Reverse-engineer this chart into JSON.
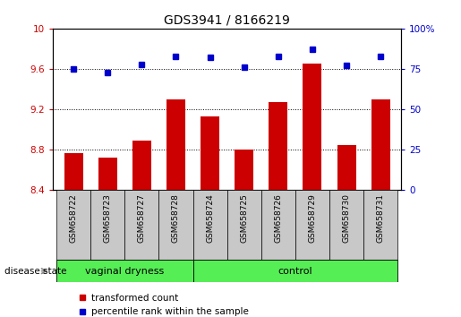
{
  "title": "GDS3941 / 8166219",
  "samples": [
    "GSM658722",
    "GSM658723",
    "GSM658727",
    "GSM658728",
    "GSM658724",
    "GSM658725",
    "GSM658726",
    "GSM658729",
    "GSM658730",
    "GSM658731"
  ],
  "red_values": [
    8.77,
    8.72,
    8.89,
    9.3,
    9.13,
    8.8,
    9.27,
    9.65,
    8.85,
    9.3
  ],
  "blue_values": [
    75,
    73,
    78,
    83,
    82,
    76,
    83,
    87,
    77,
    83
  ],
  "ylim_left": [
    8.4,
    10.0
  ],
  "ylim_right": [
    0,
    100
  ],
  "yticks_left": [
    8.4,
    8.8,
    9.2,
    9.6,
    10.0
  ],
  "yticks_right": [
    0,
    25,
    50,
    75,
    100
  ],
  "ytick_labels_left": [
    "8.4",
    "8.8",
    "9.2",
    "9.6",
    "10"
  ],
  "ytick_labels_right": [
    "0",
    "25",
    "50",
    "75",
    "100%"
  ],
  "bar_color": "#cc0000",
  "dot_color": "#0000cc",
  "bar_bottom": 8.4,
  "group1_label": "vaginal dryness",
  "group2_label": "control",
  "group1_count": 4,
  "group2_count": 6,
  "group_bg_color": "#55ee55",
  "sample_bg_color": "#c8c8c8",
  "legend_red_label": "transformed count",
  "legend_blue_label": "percentile rank within the sample",
  "disease_state_label": "disease state",
  "title_fontsize": 10,
  "tick_fontsize": 7.5,
  "label_fontsize": 8,
  "sample_fontsize": 6.5
}
